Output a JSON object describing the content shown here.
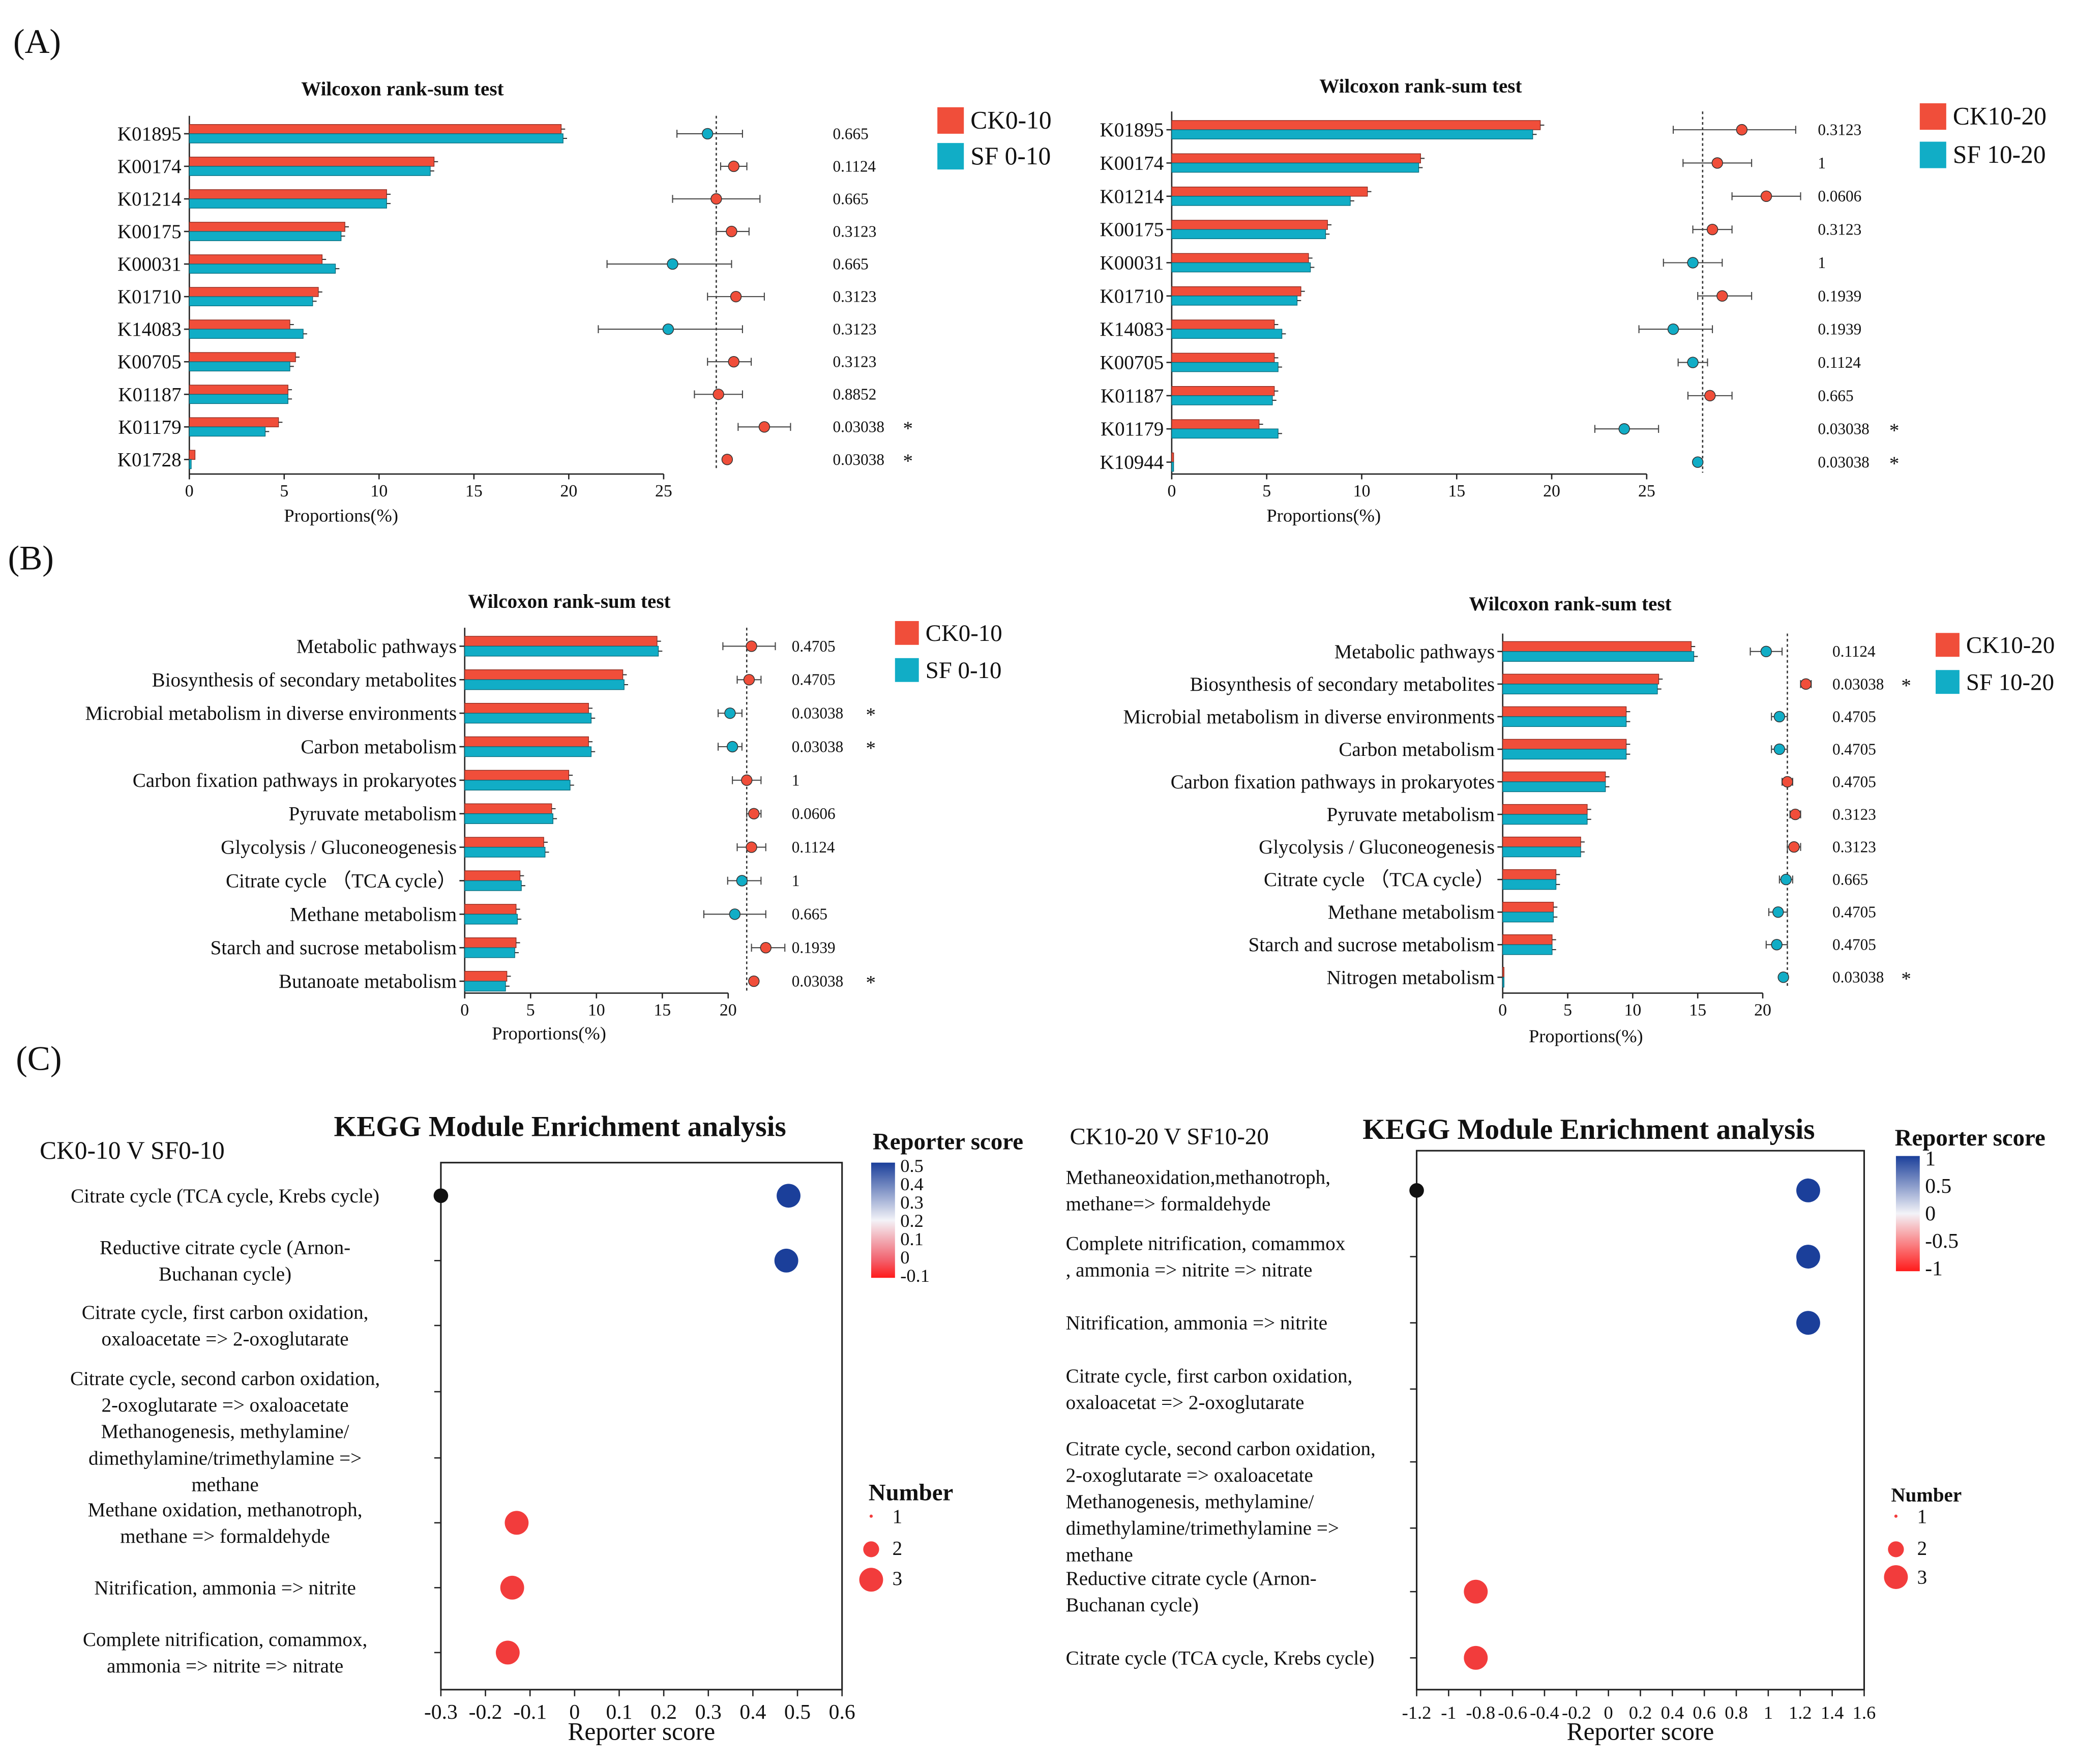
{
  "panel_labels": [
    "(A)",
    "(B)",
    "(C)"
  ],
  "colors": {
    "ck": "#f04e3a",
    "sf": "#11adc6",
    "star": "#e8382c",
    "black": "#111111"
  },
  "chart_data": [
    {
      "id": "A1",
      "type": "bar",
      "title": "Wilcoxon rank-sum test",
      "xlabel": "Proportions(%)",
      "xlim": [
        0,
        25
      ],
      "xticks": [
        0,
        5,
        10,
        15,
        20,
        25
      ],
      "categories": [
        "K01895",
        "K00174",
        "K01214",
        "K00175",
        "K00031",
        "K01710",
        "K14083",
        "K00705",
        "K01187",
        "K01179",
        "K01728"
      ],
      "series": [
        {
          "name": "CK0-10",
          "values": [
            19.6,
            12.9,
            10.4,
            8.2,
            7.0,
            6.8,
            5.3,
            5.6,
            5.2,
            4.7,
            0.3
          ]
        },
        {
          "name": "SF 0-10",
          "values": [
            19.7,
            12.7,
            10.4,
            8.0,
            7.7,
            6.5,
            6.0,
            5.3,
            5.2,
            4.0,
            0.1
          ]
        }
      ],
      "ci": {
        "centers": [
          -0.2,
          0.4,
          0.0,
          0.35,
          -1.0,
          0.45,
          -1.1,
          0.4,
          0.05,
          1.1,
          0.25
        ],
        "low": [
          -0.9,
          0.1,
          -1.0,
          0.0,
          -2.5,
          -0.2,
          -2.7,
          -0.2,
          -0.5,
          0.5,
          null
        ],
        "high": [
          0.6,
          0.7,
          1.0,
          0.75,
          0.35,
          1.1,
          0.6,
          0.8,
          0.6,
          1.7,
          null
        ]
      },
      "pvalues": [
        "0.665",
        "0.1124",
        "0.665",
        "0.3123",
        "0.665",
        "0.3123",
        "0.3123",
        "0.3123",
        "0.8852",
        "0.03038",
        "0.03038"
      ],
      "significant": [
        false,
        false,
        false,
        false,
        false,
        false,
        false,
        false,
        false,
        true,
        true
      ],
      "legend": [
        "CK0-10",
        "SF 0-10"
      ]
    },
    {
      "id": "A2",
      "type": "bar",
      "title": "Wilcoxon rank-sum test",
      "xlabel": "Proportions(%)",
      "xlim": [
        0,
        25
      ],
      "xticks": [
        0,
        5,
        10,
        15,
        20,
        25
      ],
      "categories": [
        "K01895",
        "K00174",
        "K01214",
        "K00175",
        "K00031",
        "K01710",
        "K14083",
        "K00705",
        "K01187",
        "K01179",
        "K10944"
      ],
      "series": [
        {
          "name": "CK10-20",
          "values": [
            19.4,
            13.1,
            10.3,
            8.2,
            7.2,
            6.8,
            5.4,
            5.4,
            5.4,
            4.6,
            0.1
          ]
        },
        {
          "name": "SF 10-20",
          "values": [
            19.0,
            13.0,
            9.4,
            8.1,
            7.3,
            6.6,
            5.8,
            5.6,
            5.3,
            5.6,
            0.1
          ]
        }
      ],
      "ci": {
        "centers": [
          0.8,
          0.3,
          1.3,
          0.2,
          -0.2,
          0.4,
          -0.6,
          -0.2,
          0.15,
          -1.6,
          -0.1
        ],
        "low": [
          -0.6,
          -0.4,
          0.6,
          -0.2,
          -0.8,
          -0.1,
          -1.3,
          -0.5,
          -0.3,
          -2.2,
          null
        ],
        "high": [
          1.9,
          1.0,
          2.0,
          0.6,
          0.4,
          1.0,
          0.2,
          0.1,
          0.6,
          -0.9,
          null
        ]
      },
      "pvalues": [
        "0.3123",
        "1",
        "0.0606",
        "0.3123",
        "1",
        "0.1939",
        "0.1939",
        "0.1124",
        "0.665",
        "0.03038",
        "0.03038"
      ],
      "significant": [
        false,
        false,
        false,
        false,
        false,
        false,
        false,
        false,
        false,
        true,
        true
      ],
      "legend": [
        "CK10-20",
        "SF 10-20"
      ]
    },
    {
      "id": "B1",
      "type": "bar",
      "title": "Wilcoxon rank-sum test",
      "xlabel": "Proportions(%)",
      "xlim": [
        0,
        20
      ],
      "xticks": [
        0,
        5,
        10,
        15,
        20
      ],
      "categories": [
        "Metabolic pathways",
        "Biosynthesis of secondary metabolites",
        "Microbial metabolism in diverse environments",
        "Carbon metabolism",
        "Carbon fixation pathways in prokaryotes",
        "Pyruvate metabolism",
        "Glycolysis / Gluconeogenesis",
        "Citrate cycle （TCA cycle）",
        "Methane metabolism",
        "Starch and sucrose metabolism",
        "Butanoate metabolism"
      ],
      "series": [
        {
          "name": "CK0-10",
          "values": [
            14.6,
            12.0,
            9.4,
            9.4,
            7.9,
            6.6,
            6.0,
            4.2,
            3.9,
            3.9,
            3.2
          ]
        },
        {
          "name": "SF 0-10",
          "values": [
            14.7,
            12.1,
            9.6,
            9.6,
            8.0,
            6.7,
            6.1,
            4.3,
            4.0,
            3.8,
            3.1
          ]
        }
      ],
      "ci": {
        "centers": [
          0.1,
          0.05,
          -0.35,
          -0.3,
          0.0,
          0.15,
          0.1,
          -0.1,
          -0.25,
          0.4,
          0.15
        ],
        "low": [
          -0.5,
          -0.2,
          -0.6,
          -0.6,
          -0.3,
          0.0,
          -0.2,
          -0.4,
          -0.9,
          0.1,
          null
        ],
        "high": [
          0.6,
          0.3,
          -0.1,
          -0.1,
          0.3,
          0.3,
          0.4,
          0.3,
          0.4,
          0.8,
          null
        ]
      },
      "pvalues": [
        "0.4705",
        "0.4705",
        "0.03038",
        "0.03038",
        "1",
        "0.0606",
        "0.1124",
        "1",
        "0.665",
        "0.1939",
        "0.03038"
      ],
      "significant": [
        false,
        false,
        true,
        true,
        false,
        false,
        false,
        false,
        false,
        false,
        true
      ],
      "legend": [
        "CK0-10",
        "SF 0-10"
      ]
    },
    {
      "id": "B2",
      "type": "bar",
      "title": "Wilcoxon rank-sum test",
      "xlabel": "Proportions(%)",
      "xlim": [
        0,
        20
      ],
      "xticks": [
        0,
        5,
        10,
        15,
        20
      ],
      "categories": [
        "Metabolic pathways",
        "Biosynthesis of secondary metabolites",
        "Microbial metabolism in diverse environments",
        "Carbon metabolism",
        "Carbon fixation pathways in prokaryotes",
        "Pyruvate metabolism",
        "Glycolysis / Gluconeogenesis",
        "Citrate cycle （TCA cycle）",
        "Methane metabolism",
        "Starch and sucrose metabolism",
        "Nitrogen metabolism"
      ],
      "series": [
        {
          "name": "CK10-20",
          "values": [
            14.5,
            12.0,
            9.5,
            9.5,
            7.9,
            6.5,
            6.0,
            4.1,
            3.9,
            3.8,
            0.1
          ]
        },
        {
          "name": "SF 10-20",
          "values": [
            14.7,
            11.9,
            9.5,
            9.5,
            7.9,
            6.5,
            6.0,
            4.1,
            3.9,
            3.8,
            0.1
          ]
        }
      ],
      "ci": {
        "centers": [
          -0.8,
          0.7,
          -0.3,
          -0.3,
          0.0,
          0.3,
          0.25,
          -0.05,
          -0.35,
          -0.4,
          -0.15
        ],
        "low": [
          -1.4,
          0.5,
          -0.6,
          -0.6,
          -0.2,
          0.1,
          0.0,
          -0.3,
          -0.7,
          -0.8,
          null
        ],
        "high": [
          -0.2,
          0.9,
          0.0,
          0.0,
          0.2,
          0.5,
          0.5,
          0.2,
          0.0,
          0.0,
          null
        ]
      },
      "pvalues": [
        "0.1124",
        "0.03038",
        "0.4705",
        "0.4705",
        "0.4705",
        "0.3123",
        "0.3123",
        "0.665",
        "0.4705",
        "0.4705",
        "0.03038"
      ],
      "significant": [
        false,
        true,
        false,
        false,
        false,
        false,
        false,
        false,
        false,
        false,
        true
      ],
      "legend": [
        "CK10-20",
        "SF 10-20"
      ]
    },
    {
      "id": "C1",
      "type": "scatter",
      "title": "KEGG Module Enrichment analysis",
      "subtitle": "CK0-10 V SF0-10",
      "xlabel": "Reporter score",
      "xlim": [
        -0.3,
        0.6
      ],
      "xticks": [
        "-0.3",
        "-0.2",
        "-0.1",
        "0",
        "0.1",
        "0.2",
        "0.3",
        "0.4",
        "0.5",
        "0.6"
      ],
      "categories": [
        [
          "Citrate cycle (TCA cycle, Krebs cycle)"
        ],
        [
          "Reductive citrate cycle (Arnon-",
          "Buchanan cycle)"
        ],
        [
          "Citrate cycle, first carbon oxidation,",
          "oxaloacetate => 2-oxoglutarate"
        ],
        [
          "Citrate cycle, second carbon oxidation,",
          "2-oxoglutarate => oxaloacetate"
        ],
        [
          "Methanogenesis, methylamine/",
          "dimethylamine/trimethylamine =>",
          "methane"
        ],
        [
          "Methane oxidation, methanotroph,",
          "methane => formaldehyde"
        ],
        [
          "Nitrification, ammonia => nitrite"
        ],
        [
          "Complete nitrification,  comammox,",
          "ammonia => nitrite => nitrate"
        ]
      ],
      "points": [
        {
          "row": 0,
          "x": 0.48,
          "number": 3,
          "score": 0.48
        },
        {
          "row": 1,
          "x": 0.475,
          "number": 3,
          "score": 0.47
        },
        {
          "row": 5,
          "x": -0.13,
          "number": 3,
          "score": -0.1
        },
        {
          "row": 6,
          "x": -0.14,
          "number": 3,
          "score": -0.1
        },
        {
          "row": 7,
          "x": -0.15,
          "number": 3,
          "score": -0.1
        }
      ],
      "edge_marker_row": 0,
      "colorbar": {
        "title": "Reporter score",
        "ticks": [
          "0.5",
          "0.4",
          "0.3",
          "0.2",
          "0.1",
          "0",
          "-0.1"
        ]
      },
      "size_legend": {
        "title": "Number",
        "items": [
          "1",
          "2",
          "3"
        ]
      }
    },
    {
      "id": "C2",
      "type": "scatter",
      "title": "KEGG Module Enrichment analysis",
      "subtitle": "CK10-20 V SF10-20",
      "xlabel": "Reporter score",
      "xlim": [
        -1.2,
        1.6
      ],
      "xticks": [
        "-1.2",
        "-1",
        "-0.8",
        "-0.6",
        "-0.4",
        "-0.2",
        "0",
        "0.2",
        "0.4",
        "0.6",
        "0.8",
        "1",
        "1.2",
        "1.4",
        "1.6"
      ],
      "categories": [
        [
          "Methaneoxidation,methanotroph,",
          "methane=> formaldehyde"
        ],
        [
          "Complete nitrification, comammox",
          ", ammonia => nitrite => nitrate"
        ],
        [
          "Nitrification, ammonia => nitrite"
        ],
        [
          "Citrate cycle, first carbon oxidation,",
          "oxaloacetat => 2-oxoglutarate"
        ],
        [
          "Citrate cycle, second carbon oxidation,",
          "2-oxoglutarate => oxaloacetate"
        ],
        [
          "Methanogenesis, methylamine/",
          "dimethylamine/trimethylamine =>",
          "methane"
        ],
        [
          "Reductive citrate cycle (Arnon-",
          "Buchanan cycle)"
        ],
        [
          "Citrate cycle (TCA cycle, Krebs cycle)"
        ]
      ],
      "points": [
        {
          "row": 0,
          "x": 1.25,
          "number": 3,
          "score": 1.2
        },
        {
          "row": 1,
          "x": 1.25,
          "number": 3,
          "score": 1.2
        },
        {
          "row": 2,
          "x": 1.25,
          "number": 3,
          "score": 1.2
        },
        {
          "row": 6,
          "x": -0.83,
          "number": 3,
          "score": -0.8
        },
        {
          "row": 7,
          "x": -0.83,
          "number": 3,
          "score": -0.8
        }
      ],
      "edge_marker_row": 0,
      "colorbar": {
        "title": "Reporter score",
        "ticks": [
          "1",
          "0.5",
          "0",
          "-0.5",
          "-1"
        ]
      },
      "size_legend": {
        "title": "Number",
        "items": [
          "1",
          "2",
          "3"
        ]
      }
    }
  ]
}
